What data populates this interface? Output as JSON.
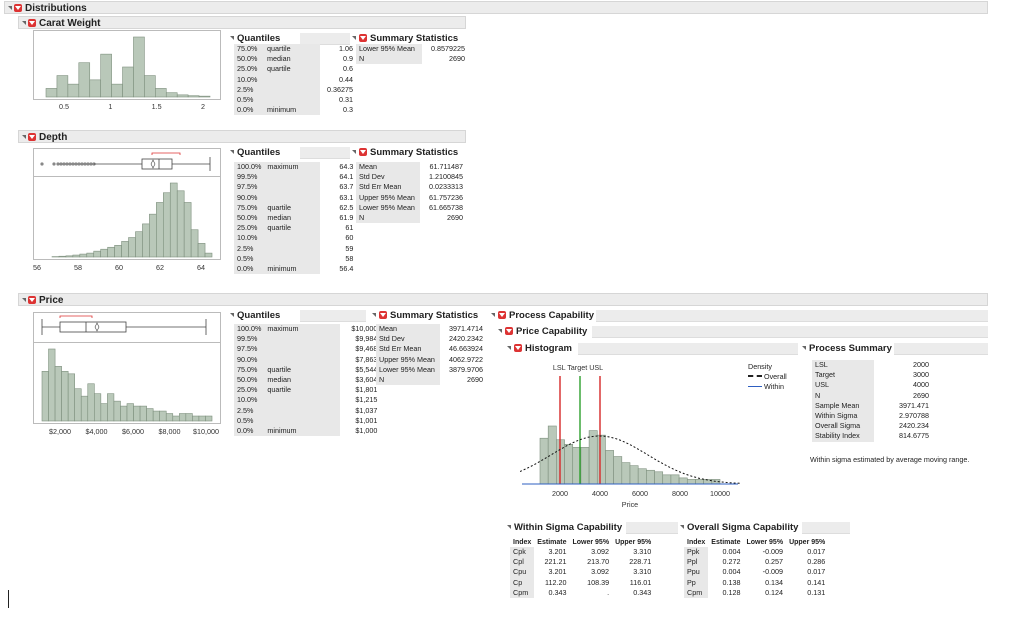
{
  "distributions": {
    "title": "Distributions"
  },
  "carat": {
    "title": "Carat Weight",
    "ticks": [
      "0.5",
      "1",
      "1.5",
      "2"
    ],
    "bars": [
      2,
      5,
      3,
      8,
      4,
      10,
      3,
      7,
      14,
      5,
      2,
      1,
      0.5,
      0.3,
      0.2
    ],
    "quantiles": {
      "title": "Quantiles",
      "rows": [
        [
          "75.0%",
          "quartile",
          "1.06"
        ],
        [
          "50.0%",
          "median",
          "0.9"
        ],
        [
          "25.0%",
          "quartile",
          "0.6"
        ],
        [
          "10.0%",
          "",
          "0.44"
        ],
        [
          "2.5%",
          "",
          "0.36275"
        ],
        [
          "0.5%",
          "",
          "0.31"
        ],
        [
          "0.0%",
          "minimum",
          "0.3"
        ]
      ]
    },
    "summary": {
      "title": "Summary Statistics",
      "rows": [
        [
          "Lower 95% Mean",
          "0.8579225"
        ],
        [
          "N",
          "2690"
        ]
      ]
    }
  },
  "depth": {
    "title": "Depth",
    "ticks": [
      "56",
      "58",
      "60",
      "62",
      "64"
    ],
    "bars": [
      0.2,
      0.4,
      0.6,
      1,
      1.5,
      2,
      3,
      4,
      5,
      6,
      8,
      10,
      13,
      17,
      22,
      28,
      33,
      38,
      34,
      28,
      14,
      7,
      2
    ],
    "quantiles": {
      "title": "Quantiles",
      "rows": [
        [
          "100.0%",
          "maximum",
          "64.3"
        ],
        [
          "99.5%",
          "",
          "64.1"
        ],
        [
          "97.5%",
          "",
          "63.7"
        ],
        [
          "90.0%",
          "",
          "63.1"
        ],
        [
          "75.0%",
          "quartile",
          "62.5"
        ],
        [
          "50.0%",
          "median",
          "61.9"
        ],
        [
          "25.0%",
          "quartile",
          "61"
        ],
        [
          "10.0%",
          "",
          "60"
        ],
        [
          "2.5%",
          "",
          "59"
        ],
        [
          "0.5%",
          "",
          "58"
        ],
        [
          "0.0%",
          "minimum",
          "56.4"
        ]
      ]
    },
    "summary": {
      "title": "Summary Statistics",
      "rows": [
        [
          "Mean",
          "61.711487"
        ],
        [
          "Std Dev",
          "1.2100845"
        ],
        [
          "Std Err Mean",
          "0.0233313"
        ],
        [
          "Upper 95% Mean",
          "61.757236"
        ],
        [
          "Lower 95% Mean",
          "61.665738"
        ],
        [
          "N",
          "2690"
        ]
      ]
    }
  },
  "price": {
    "title": "Price",
    "ticks": [
      "$2,000",
      "$4,000",
      "$6,000",
      "$8,000",
      "$10,000"
    ],
    "bars": [
      20,
      29,
      22,
      20,
      19,
      13,
      10,
      15,
      11,
      7,
      11,
      8,
      6,
      7,
      6,
      6,
      5,
      4,
      4,
      3,
      2,
      3,
      3,
      2,
      2,
      2
    ],
    "quantiles": {
      "title": "Quantiles",
      "rows": [
        [
          "100.0%",
          "maximum",
          "$10,000"
        ],
        [
          "99.5%",
          "",
          "$9,984"
        ],
        [
          "97.5%",
          "",
          "$9,468"
        ],
        [
          "90.0%",
          "",
          "$7,863"
        ],
        [
          "75.0%",
          "quartile",
          "$5,544"
        ],
        [
          "50.0%",
          "median",
          "$3,604"
        ],
        [
          "25.0%",
          "quartile",
          "$1,801"
        ],
        [
          "10.0%",
          "",
          "$1,215"
        ],
        [
          "2.5%",
          "",
          "$1,037"
        ],
        [
          "0.5%",
          "",
          "$1,001"
        ],
        [
          "0.0%",
          "minimum",
          "$1,000"
        ]
      ]
    },
    "summary": {
      "title": "Summary Statistics",
      "rows": [
        [
          "Mean",
          "3971.4714"
        ],
        [
          "Std Dev",
          "2420.2342"
        ],
        [
          "Std Err Mean",
          "46.663924"
        ],
        [
          "Upper 95% Mean",
          "4062.9722"
        ],
        [
          "Lower 95% Mean",
          "3879.9706"
        ],
        [
          "N",
          "2690"
        ]
      ]
    }
  },
  "capability": {
    "title": "Process Capability",
    "price_cap": "Price Capability",
    "histogram": {
      "title": "Histogram",
      "spec_labels": "LSL Target USL",
      "xlabel": "Price",
      "ticks": [
        "2000",
        "4000",
        "6000",
        "8000",
        "10000"
      ],
      "bars": [
        30,
        38,
        29,
        26,
        24,
        24,
        35,
        32,
        22,
        18,
        14,
        12,
        10,
        9,
        8,
        6,
        6,
        4,
        3,
        3,
        3,
        3
      ],
      "legend": {
        "title": "Density",
        "overall": "Overall",
        "within": "Within"
      },
      "colors": {
        "lsl": "#d62728",
        "target": "#2ca02c",
        "usl": "#d62728",
        "within": "#2e5fc1"
      }
    },
    "process_summary": {
      "title": "Process Summary",
      "rows": [
        [
          "LSL",
          "2000"
        ],
        [
          "Target",
          "3000"
        ],
        [
          "USL",
          "4000"
        ],
        [
          "N",
          "2690"
        ],
        [
          "Sample Mean",
          "3971.471"
        ],
        [
          "Within Sigma",
          "2.970788"
        ],
        [
          "Overall Sigma",
          "2420.234"
        ],
        [
          "Stability Index",
          "814.6775"
        ]
      ],
      "note": "Within sigma estimated by average moving range."
    },
    "within": {
      "title": "Within Sigma Capability",
      "headers": [
        "Index",
        "Estimate",
        "Lower 95%",
        "Upper 95%"
      ],
      "rows": [
        [
          "Cpk",
          "3.201",
          "3.092",
          "3.310"
        ],
        [
          "Cpl",
          "221.21",
          "213.70",
          "228.71"
        ],
        [
          "Cpu",
          "3.201",
          "3.092",
          "3.310"
        ],
        [
          "Cp",
          "112.20",
          "108.39",
          "116.01"
        ],
        [
          "Cpm",
          "0.343",
          ".",
          "0.343"
        ]
      ]
    },
    "overall": {
      "title": "Overall Sigma Capability",
      "headers": [
        "Index",
        "Estimate",
        "Lower 95%",
        "Upper 95%"
      ],
      "rows": [
        [
          "Ppk",
          "0.004",
          "-0.009",
          "0.017"
        ],
        [
          "Ppl",
          "0.272",
          "0.257",
          "0.286"
        ],
        [
          "Ppu",
          "0.004",
          "-0.009",
          "0.017"
        ],
        [
          "Pp",
          "0.138",
          "0.134",
          "0.141"
        ],
        [
          "Cpm",
          "0.128",
          "0.124",
          "0.131"
        ]
      ]
    }
  }
}
